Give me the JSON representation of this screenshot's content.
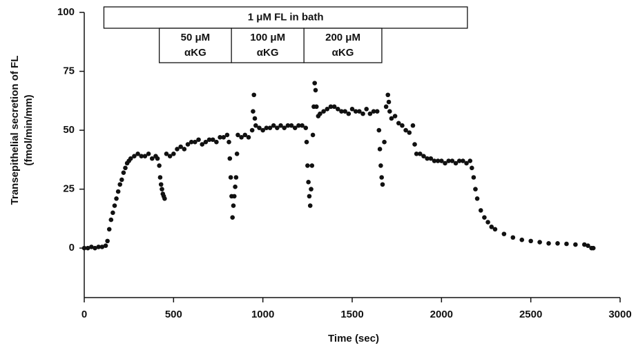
{
  "chart_data": {
    "type": "scatter",
    "xlabel": "Time (sec)",
    "ylabel": [
      "Transepithelial secretion of FL",
      "(fmol/min/mm)"
    ],
    "xlim": [
      0,
      3000
    ],
    "ylim": [
      -21,
      100
    ],
    "xticks": [
      0,
      500,
      1000,
      1500,
      2000,
      2500,
      3000
    ],
    "yticks": [
      0,
      25,
      50,
      75,
      100
    ],
    "color": "#111111",
    "annotations": [
      {
        "lines": [
          "1 μM FL in bath"
        ],
        "start": 110,
        "end": 2145
      },
      {
        "lines": [
          "50 μM",
          "αKG"
        ],
        "start": 420,
        "end": 824
      },
      {
        "lines": [
          "100 μM",
          "αKG"
        ],
        "start": 824,
        "end": 1230
      },
      {
        "lines": [
          "200 μM",
          "αKG"
        ],
        "start": 1230,
        "end": 1666
      }
    ],
    "x": [
      0,
      20,
      40,
      60,
      80,
      100,
      120,
      130,
      140,
      150,
      160,
      170,
      180,
      190,
      200,
      210,
      220,
      230,
      240,
      250,
      260,
      280,
      300,
      320,
      340,
      360,
      380,
      400,
      410,
      420,
      425,
      430,
      435,
      440,
      445,
      450,
      460,
      480,
      500,
      520,
      540,
      560,
      580,
      600,
      620,
      640,
      660,
      680,
      700,
      720,
      740,
      760,
      780,
      800,
      810,
      815,
      820,
      825,
      830,
      835,
      840,
      845,
      850,
      855,
      860,
      880,
      900,
      920,
      940,
      945,
      950,
      955,
      960,
      980,
      1000,
      1020,
      1040,
      1060,
      1080,
      1100,
      1120,
      1140,
      1160,
      1180,
      1200,
      1220,
      1240,
      1245,
      1250,
      1255,
      1260,
      1265,
      1270,
      1275,
      1280,
      1285,
      1290,
      1295,
      1300,
      1310,
      1320,
      1340,
      1360,
      1380,
      1400,
      1420,
      1440,
      1460,
      1480,
      1500,
      1520,
      1540,
      1560,
      1580,
      1600,
      1620,
      1640,
      1650,
      1655,
      1660,
      1665,
      1670,
      1680,
      1690,
      1700,
      1705,
      1710,
      1720,
      1740,
      1760,
      1780,
      1800,
      1820,
      1840,
      1850,
      1860,
      1880,
      1900,
      1920,
      1940,
      1960,
      1980,
      2000,
      2020,
      2040,
      2060,
      2080,
      2100,
      2120,
      2140,
      2160,
      2170,
      2180,
      2190,
      2200,
      2220,
      2240,
      2260,
      2280,
      2300,
      2350,
      2400,
      2450,
      2500,
      2550,
      2600,
      2650,
      2700,
      2750,
      2800,
      2820,
      2840,
      2850
    ],
    "values": [
      0,
      0,
      0.5,
      0,
      0.5,
      0.5,
      1,
      3,
      8,
      12,
      15,
      18,
      21,
      24,
      27,
      29,
      32,
      34,
      36,
      37,
      38,
      39,
      40,
      39,
      39,
      40,
      38,
      39,
      38,
      35,
      30,
      27,
      25,
      23,
      22,
      21,
      40,
      39,
      40,
      42,
      43,
      42,
      44,
      45,
      45,
      46,
      44,
      45,
      46,
      46,
      45,
      47,
      47,
      48,
      45,
      38,
      30,
      22,
      13,
      18,
      22,
      26,
      30,
      40,
      48,
      47,
      48,
      47,
      50,
      58,
      65,
      55,
      52,
      51,
      50,
      51,
      51,
      52,
      51,
      52,
      51,
      52,
      52,
      51,
      52,
      52,
      51,
      45,
      35,
      28,
      22,
      18,
      25,
      35,
      48,
      60,
      70,
      67,
      60,
      56,
      57,
      58,
      59,
      60,
      60,
      59,
      58,
      58,
      57,
      59,
      58,
      58,
      57,
      59,
      57,
      58,
      58,
      50,
      42,
      35,
      30,
      27,
      45,
      60,
      65,
      62,
      58,
      55,
      56,
      53,
      52,
      50,
      49,
      52,
      44,
      40,
      40,
      39,
      38,
      38,
      37,
      37,
      37,
      36,
      37,
      37,
      36,
      37,
      37,
      36,
      37,
      34,
      30,
      25,
      21,
      16,
      13,
      11,
      9,
      8,
      6,
      4.5,
      3.5,
      3,
      2.5,
      2,
      2,
      1.8,
      1.5,
      1.5,
      1,
      0,
      0
    ]
  }
}
